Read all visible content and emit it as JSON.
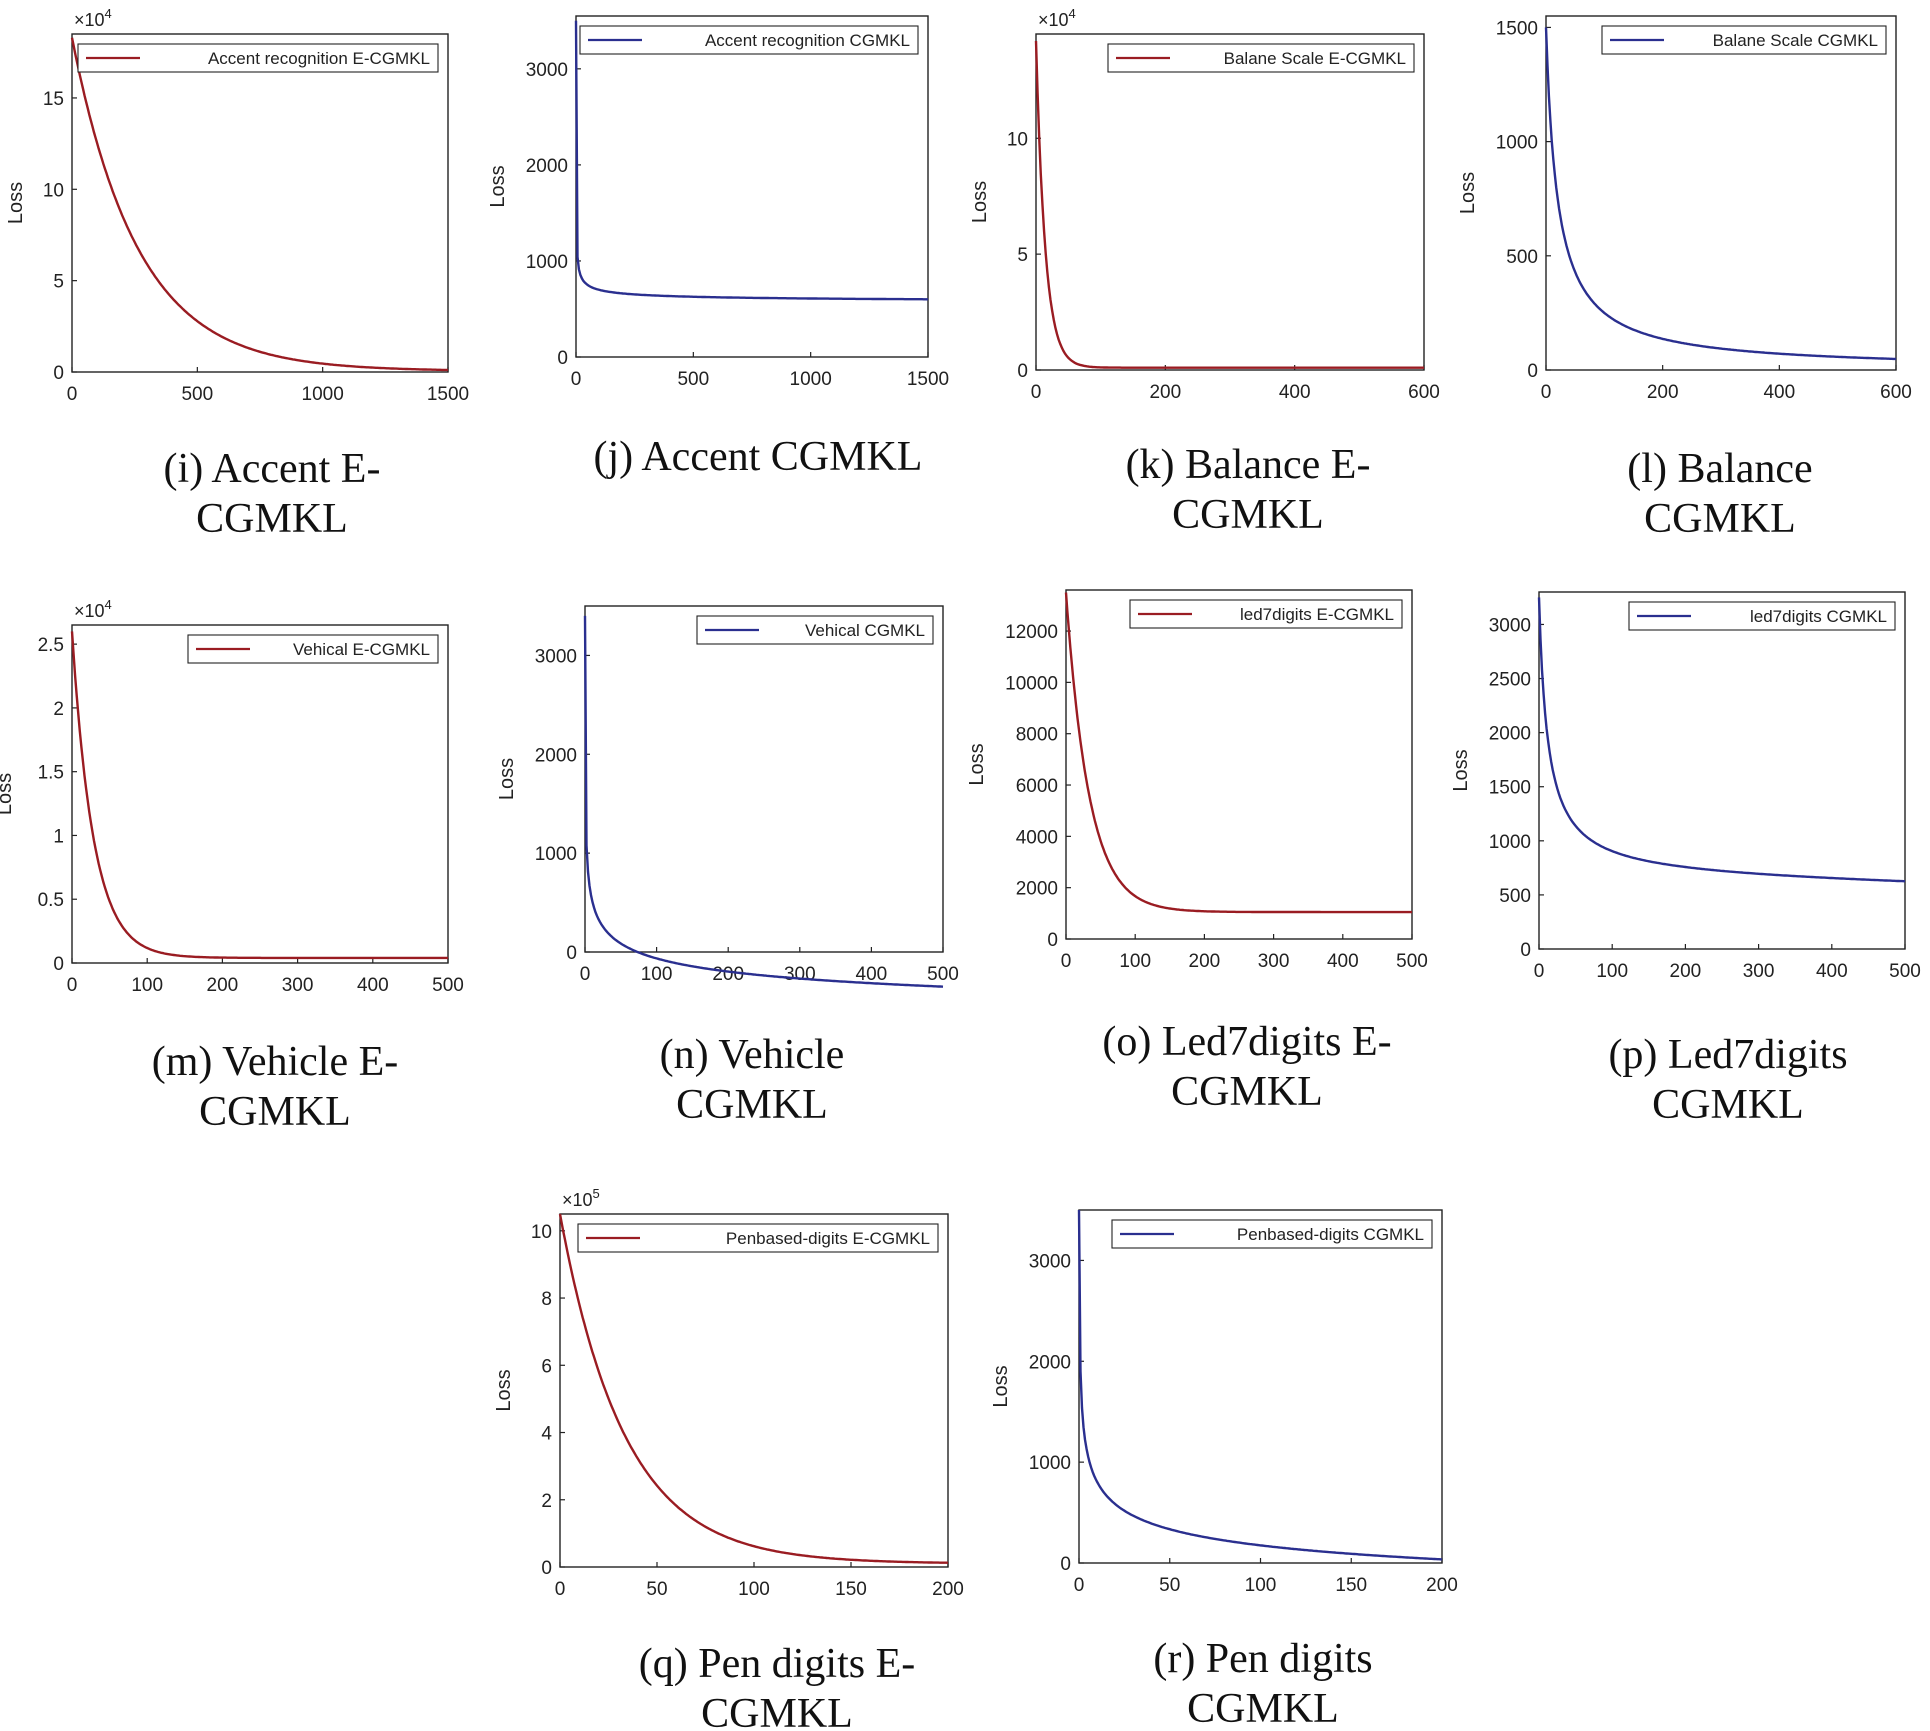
{
  "chart_data": [
    {
      "id": "i",
      "type": "line",
      "caption": [
        "(i) Accent E-",
        "CGMKL"
      ],
      "legend": "Accent recognition E-CGMKL",
      "color": "#9a1c22",
      "ylabel": "Loss",
      "multiplier": "×10^4",
      "xlim": [
        0,
        1500
      ],
      "ylim": [
        0,
        18.5
      ],
      "xticks": [
        0,
        500,
        1000,
        1500
      ],
      "xtick_labels": [
        "0",
        "500",
        "1000",
        "1500"
      ],
      "yticks": [
        0,
        5,
        10,
        15
      ],
      "ytick_labels": [
        "0",
        "5",
        "10",
        "15"
      ],
      "curve": {
        "kind": "exp",
        "start": 18.3,
        "end": 0.05,
        "rate": 0.0038,
        "xmax": 1500
      }
    },
    {
      "id": "j",
      "type": "line",
      "caption": [
        "(j) Accent CGMKL"
      ],
      "legend": "Accent recognition CGMKL",
      "color": "#2a2f8f",
      "ylabel": "Loss",
      "multiplier": "",
      "xlim": [
        0,
        1500
      ],
      "ylim": [
        0,
        3550
      ],
      "xticks": [
        0,
        500,
        1000,
        1500
      ],
      "xtick_labels": [
        "0",
        "500",
        "1000",
        "1500"
      ],
      "yticks": [
        0,
        1000,
        2000,
        3000
      ],
      "ytick_labels": [
        "0",
        "1000",
        "2000",
        "3000"
      ],
      "curve": {
        "kind": "power",
        "start": 3500,
        "a": 560,
        "b": 1100,
        "p": 0.45,
        "xmax": 1500
      }
    },
    {
      "id": "k",
      "type": "line",
      "caption": [
        "(k) Balance E-",
        "CGMKL"
      ],
      "legend": "Balane Scale E-CGMKL",
      "color": "#9a1c22",
      "ylabel": "Loss",
      "multiplier": "×10^4",
      "xlim": [
        0,
        600
      ],
      "ylim": [
        0,
        14.5
      ],
      "xticks": [
        0,
        200,
        400,
        600
      ],
      "xtick_labels": [
        "0",
        "200",
        "400",
        "600"
      ],
      "yticks": [
        0,
        5,
        10
      ],
      "ytick_labels": [
        "0",
        "5",
        "10"
      ],
      "curve": {
        "kind": "exp",
        "start": 14.2,
        "end": 0.1,
        "rate": 0.07,
        "xmax": 600
      }
    },
    {
      "id": "l",
      "type": "line",
      "caption": [
        "(l) Balance",
        "CGMKL"
      ],
      "legend": "Balane Scale CGMKL",
      "color": "#2a2f8f",
      "ylabel": "Loss",
      "multiplier": "",
      "xlim": [
        0,
        600
      ],
      "ylim": [
        0,
        1550
      ],
      "xticks": [
        0,
        200,
        400,
        600
      ],
      "xtick_labels": [
        "0",
        "200",
        "400",
        "600"
      ],
      "yticks": [
        0,
        500,
        1000,
        1500
      ],
      "ytick_labels": [
        "0",
        "500",
        "1000",
        "1500"
      ],
      "curve": {
        "kind": "hyper",
        "start": 1500,
        "c": 20,
        "xmax": 600
      }
    },
    {
      "id": "m",
      "type": "line",
      "caption": [
        "(m) Vehicle E-",
        "CGMKL"
      ],
      "legend": "Vehical E-CGMKL",
      "color": "#9a1c22",
      "ylabel": "Loss",
      "multiplier": "×10^4",
      "xlim": [
        0,
        500
      ],
      "ylim": [
        0,
        2.65
      ],
      "xticks": [
        0,
        100,
        200,
        300,
        400,
        500
      ],
      "xtick_labels": [
        "0",
        "100",
        "200",
        "300",
        "400",
        "500"
      ],
      "yticks": [
        0,
        0.5,
        1,
        1.5,
        2,
        2.5
      ],
      "ytick_labels": [
        "0",
        "0.5",
        "1",
        "1.5",
        "2",
        "2.5"
      ],
      "curve": {
        "kind": "exp",
        "start": 2.6,
        "end": 0.04,
        "rate": 0.035,
        "xmax": 500
      }
    },
    {
      "id": "n",
      "type": "line",
      "caption": [
        "(n) Vehicle",
        "CGMKL"
      ],
      "legend": "Vehical CGMKL",
      "color": "#2a2f8f",
      "ylabel": "Loss",
      "multiplier": "",
      "xlim": [
        0,
        500
      ],
      "ylim": [
        0,
        3500
      ],
      "xticks": [
        0,
        100,
        200,
        300,
        400,
        500
      ],
      "xtick_labels": [
        "0",
        "100",
        "200",
        "300",
        "400",
        "500"
      ],
      "yticks": [
        0,
        1000,
        2000,
        3000
      ],
      "ytick_labels": [
        "0",
        "1000",
        "2000",
        "3000"
      ],
      "curve": {
        "kind": "power",
        "start": 3400,
        "a": -1200,
        "b": 2600,
        "p": 0.18,
        "xmax": 500
      }
    },
    {
      "id": "o",
      "type": "line",
      "caption": [
        "(o) Led7digits E-",
        "CGMKL"
      ],
      "legend": "led7digits E-CGMKL",
      "color": "#9a1c22",
      "ylabel": "Loss",
      "multiplier": "",
      "xlim": [
        0,
        500
      ],
      "ylim": [
        0,
        13600
      ],
      "xticks": [
        0,
        100,
        200,
        300,
        400,
        500
      ],
      "xtick_labels": [
        "0",
        "100",
        "200",
        "300",
        "400",
        "500"
      ],
      "yticks": [
        0,
        2000,
        4000,
        6000,
        8000,
        10000,
        12000
      ],
      "ytick_labels": [
        "0",
        "2000",
        "4000",
        "6000",
        "8000",
        "10000",
        "12000"
      ],
      "curve": {
        "kind": "exp",
        "start": 13500,
        "end": 1050,
        "rate": 0.03,
        "xmax": 500
      }
    },
    {
      "id": "p",
      "type": "line",
      "caption": [
        "(p) Led7digits",
        "CGMKL"
      ],
      "legend": "led7digits CGMKL",
      "color": "#2a2f8f",
      "ylabel": "Loss",
      "multiplier": "",
      "xlim": [
        0,
        500
      ],
      "ylim": [
        0,
        3300
      ],
      "xticks": [
        0,
        100,
        200,
        300,
        400,
        500
      ],
      "xtick_labels": [
        "0",
        "100",
        "200",
        "300",
        "400",
        "500"
      ],
      "yticks": [
        0,
        500,
        1000,
        1500,
        2000,
        2500,
        3000
      ],
      "ytick_labels": [
        "0",
        "500",
        "1000",
        "1500",
        "2000",
        "2500",
        "3000"
      ],
      "curve": {
        "kind": "hyper2",
        "start": 3250,
        "floor": 640,
        "c": 12,
        "xmax": 500
      }
    },
    {
      "id": "q",
      "type": "line",
      "caption": [
        "(q) Pen digits E-",
        "CGMKL"
      ],
      "legend": "Penbased-digits E-CGMKL",
      "color": "#9a1c22",
      "ylabel": "Loss",
      "multiplier": "×10^5",
      "xlim": [
        0,
        200
      ],
      "ylim": [
        0,
        10.5
      ],
      "xticks": [
        0,
        50,
        100,
        150,
        200
      ],
      "xtick_labels": [
        "0",
        "50",
        "100",
        "150",
        "200"
      ],
      "yticks": [
        0,
        2,
        4,
        6,
        8,
        10
      ],
      "ytick_labels": [
        "0",
        "2",
        "4",
        "6",
        "8",
        "10"
      ],
      "curve": {
        "kind": "exp",
        "start": 10.5,
        "end": 0.1,
        "rate": 0.03,
        "xmax": 200
      }
    },
    {
      "id": "r",
      "type": "line",
      "caption": [
        "(r) Pen digits",
        "CGMKL"
      ],
      "legend": "Penbased-digits CGMKL",
      "color": "#2a2f8f",
      "ylabel": "Loss",
      "multiplier": "",
      "xlim": [
        0,
        200
      ],
      "ylim": [
        0,
        3500
      ],
      "xticks": [
        0,
        50,
        100,
        150,
        200
      ],
      "xtick_labels": [
        "0",
        "50",
        "100",
        "150",
        "200"
      ],
      "yticks": [
        0,
        1000,
        2000,
        3000
      ],
      "ytick_labels": [
        "0",
        "1000",
        "2000",
        "3000"
      ],
      "curve": {
        "kind": "power",
        "start": 3500,
        "a": -900,
        "b": 2700,
        "p": 0.2,
        "xmax": 200
      }
    }
  ]
}
